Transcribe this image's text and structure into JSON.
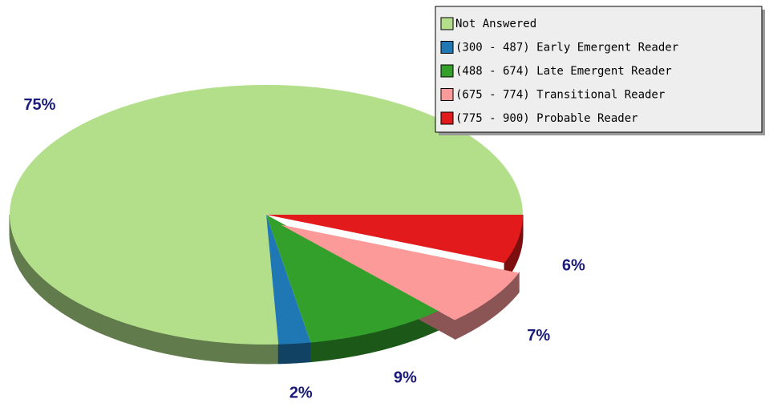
{
  "chart_data": {
    "type": "pie",
    "categories": [
      "Not Answered",
      "(300 - 487) Early Emergent Reader",
      "(488 - 674) Late Emergent Reader",
      "(675 - 774) Transitional Reader",
      "(775 - 900) Probable Reader"
    ],
    "values": [
      75,
      2,
      9,
      7,
      6
    ],
    "value_labels": [
      "75%",
      "2%",
      "9%",
      "7%",
      "6%"
    ],
    "colors": [
      "#b3df8a",
      "#1f78b4",
      "#33a02c",
      "#fb9a99",
      "#e31a1c"
    ],
    "exploded": [
      false,
      false,
      false,
      true,
      false
    ],
    "legend": "top-right"
  }
}
